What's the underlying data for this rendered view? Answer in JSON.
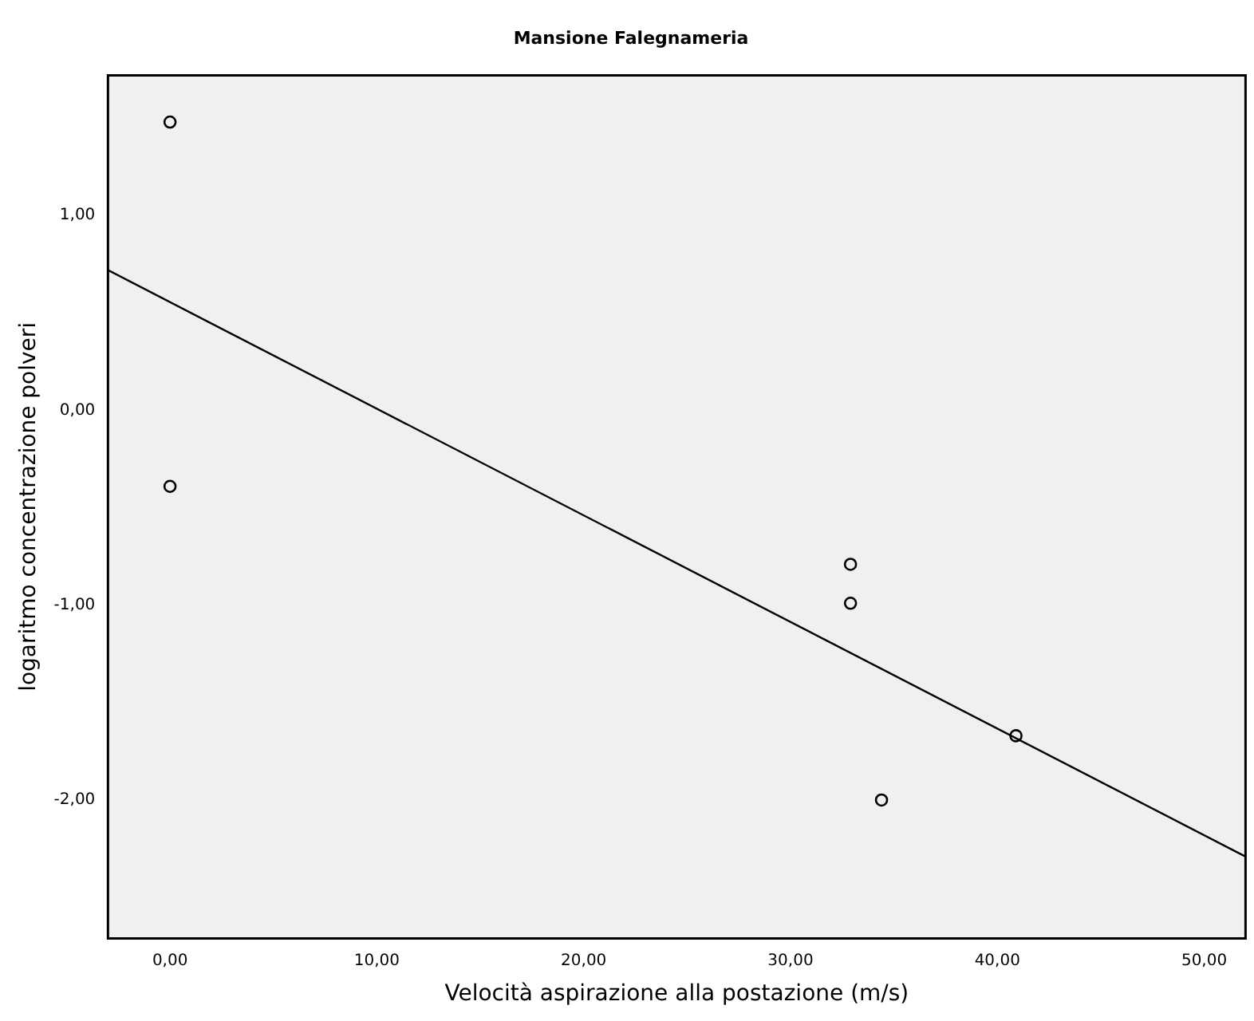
{
  "chart_data": {
    "type": "scatter",
    "title": "Mansione Falegnameria",
    "xlabel": "Velocità aspirazione alla postazione (m/s)",
    "ylabel": "logaritmo concentrazione polveri",
    "x": [
      0,
      0,
      32.9,
      32.9,
      34.4,
      40.9
    ],
    "values": [
      1.48,
      -0.39,
      -0.79,
      -0.99,
      -2.0,
      -1.67
    ],
    "color": "#000000",
    "marker": "circle",
    "series": [
      {
        "type": "line",
        "x": [
          -3,
          52
        ],
        "values": [
          0.72,
          -2.29
        ],
        "color": "#000000",
        "marker": "none"
      }
    ],
    "xlim": [
      -3,
      52
    ],
    "ylim": [
      -2.71,
      1.72
    ],
    "xticks": [
      {
        "value": 0,
        "label": "0,00"
      },
      {
        "value": 10,
        "label": "10,00"
      },
      {
        "value": 20,
        "label": "20,00"
      },
      {
        "value": 30,
        "label": "30,00"
      },
      {
        "value": 40,
        "label": "40,00"
      },
      {
        "value": 50,
        "label": "50,00"
      }
    ],
    "yticks": [
      {
        "value": -2,
        "label": "-2,00"
      },
      {
        "value": -1,
        "label": "-1,00"
      },
      {
        "value": 0,
        "label": "0,00"
      },
      {
        "value": 1,
        "label": "1,00"
      }
    ],
    "grid": false,
    "legend": false
  }
}
